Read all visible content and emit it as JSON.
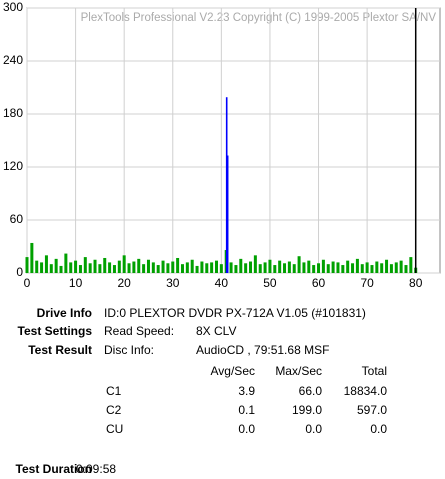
{
  "chart_data": {
    "type": "bar",
    "watermark": "PlexTools Professional V2.23 Copyright (C) 1999-2005 Plextor SA/NV",
    "xlim": [
      0,
      85
    ],
    "ylim": [
      0,
      300
    ],
    "xticks": [
      0,
      10,
      20,
      30,
      40,
      50,
      60,
      70,
      80
    ],
    "yticks": [
      0,
      60,
      120,
      180,
      240,
      300
    ],
    "grid": true,
    "end_marker_x": 80,
    "series": [
      {
        "color": "#00a000",
        "x": [
          0,
          1,
          2,
          3,
          4,
          5,
          6,
          7,
          8,
          9,
          10,
          11,
          12,
          13,
          14,
          15,
          16,
          17,
          18,
          19,
          20,
          21,
          22,
          23,
          24,
          25,
          26,
          27,
          28,
          29,
          30,
          31,
          32,
          33,
          34,
          35,
          36,
          37,
          38,
          39,
          40,
          41,
          42,
          43,
          44,
          45,
          46,
          47,
          48,
          49,
          50,
          51,
          52,
          53,
          54,
          55,
          56,
          57,
          58,
          59,
          60,
          61,
          62,
          63,
          64,
          65,
          66,
          67,
          68,
          69,
          70,
          71,
          72,
          73,
          74,
          75,
          76,
          77,
          78,
          79,
          80
        ],
        "values": [
          18,
          34,
          14,
          12,
          20,
          10,
          16,
          8,
          22,
          12,
          14,
          9,
          18,
          11,
          15,
          10,
          17,
          12,
          9,
          14,
          20,
          11,
          13,
          16,
          10,
          15,
          12,
          9,
          14,
          11,
          13,
          17,
          10,
          12,
          15,
          8,
          13,
          11,
          12,
          14,
          10,
          26,
          12,
          9,
          16,
          11,
          13,
          20,
          10,
          12,
          15,
          9,
          14,
          11,
          13,
          10,
          19,
          12,
          14,
          9,
          11,
          15,
          10,
          13,
          12,
          9,
          14,
          11,
          16,
          10,
          12,
          9,
          13,
          11,
          15,
          10,
          12,
          14,
          9,
          18,
          6
        ]
      },
      {
        "color": "#0000ff",
        "x": [
          41.1,
          41.3
        ],
        "values": [
          199,
          133
        ]
      }
    ]
  },
  "info": {
    "drive": {
      "label": "Drive Info",
      "value": "ID:0 PLEXTOR DVDR PX-712A V1.05 (#101831)"
    },
    "settings": {
      "label": "Test Settings",
      "key": "Read Speed:",
      "value": "8X CLV"
    },
    "result": {
      "label": "Test Result",
      "key": "Disc Info:",
      "value": "AudioCD , 79:51.68 MSF"
    },
    "headers": [
      "Avg/Sec",
      "Max/Sec",
      "Total"
    ],
    "rows": [
      [
        "C1",
        "3.9",
        "66.0",
        "18834.0"
      ],
      [
        "C2",
        "0.1",
        "199.0",
        "597.0"
      ],
      [
        "CU",
        "0.0",
        "0.0",
        "0.0"
      ]
    ],
    "duration": {
      "label": "Test Duration",
      "value": "0:09:58"
    }
  }
}
